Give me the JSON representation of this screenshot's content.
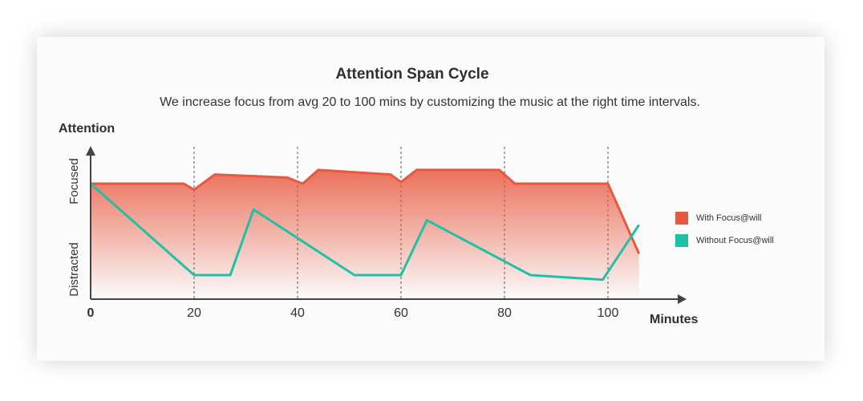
{
  "colors": {
    "with": "#e8583f",
    "without": "#1fc1a4",
    "axis": "#444444"
  },
  "chart_data": {
    "type": "line",
    "title": "Attention Span Cycle",
    "subtitle": "We increase focus from avg 20 to 100 mins by customizing the music at the right time intervals.",
    "xlabel": "Minutes",
    "ylabel": "Attention",
    "y_categories": [
      "Distracted",
      "Focused"
    ],
    "xlim": [
      0,
      110
    ],
    "ylim": [
      0,
      1
    ],
    "x_ticks": [
      "0",
      "20",
      "40",
      "60",
      "80",
      "100"
    ],
    "x_tick_values": [
      0,
      20,
      40,
      60,
      80,
      100
    ],
    "grid": "vertical dashed lines at 20, 40, 60, 80, 100",
    "legend_position": "right",
    "series": [
      {
        "name": "With Focus@will",
        "color": "#e8583f",
        "area_fill": true,
        "points": [
          [
            0,
            0.79
          ],
          [
            18,
            0.79
          ],
          [
            20,
            0.75
          ],
          [
            24,
            0.85
          ],
          [
            38,
            0.83
          ],
          [
            41,
            0.79
          ],
          [
            44,
            0.88
          ],
          [
            58,
            0.85
          ],
          [
            60,
            0.8
          ],
          [
            63,
            0.88
          ],
          [
            79,
            0.88
          ],
          [
            82,
            0.79
          ],
          [
            100,
            0.79
          ],
          [
            106,
            0.33
          ]
        ]
      },
      {
        "name": "Without Focus@will",
        "color": "#1fc1a4",
        "points": [
          [
            0,
            0.79
          ],
          [
            20,
            0.19
          ],
          [
            27,
            0.19
          ],
          [
            31.5,
            0.62
          ],
          [
            51,
            0.19
          ],
          [
            60,
            0.19
          ],
          [
            65,
            0.55
          ],
          [
            85,
            0.19
          ],
          [
            99,
            0.16
          ],
          [
            106,
            0.52
          ]
        ]
      }
    ]
  }
}
